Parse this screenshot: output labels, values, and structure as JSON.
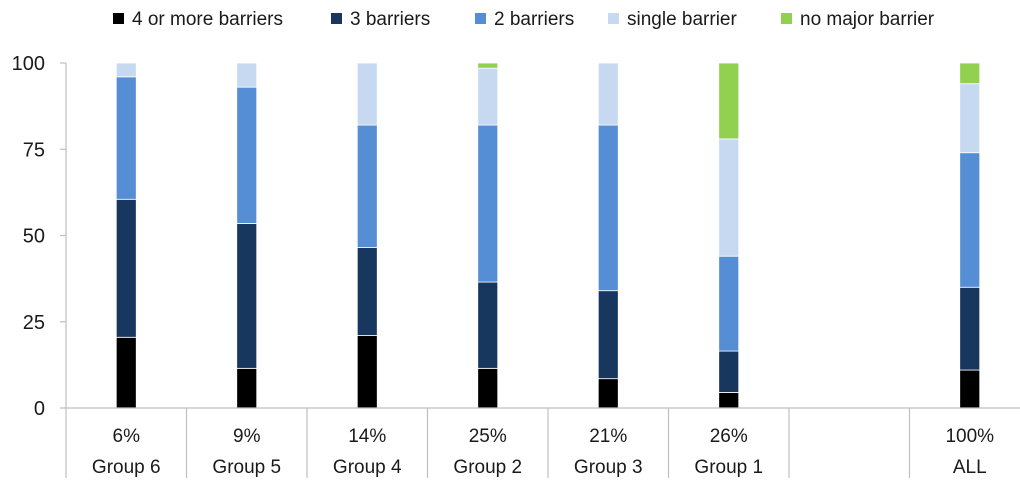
{
  "chart_data": {
    "type": "bar",
    "stacked": true,
    "orientation": "vertical",
    "title": "",
    "xlabel": "",
    "ylabel": "",
    "ylim": [
      0,
      100
    ],
    "yticks": [
      0,
      25,
      50,
      75,
      100
    ],
    "grid": false,
    "legend_position": "top",
    "categories": [
      "Group 6",
      "Group 5",
      "Group 4",
      "Group 2",
      "Group 3",
      "Group 1",
      "",
      "ALL"
    ],
    "category_shares": [
      "6%",
      "9%",
      "14%",
      "25%",
      "21%",
      "26%",
      "",
      "100%"
    ],
    "series": [
      {
        "name": "4 or more barriers",
        "color": "#000000",
        "values": [
          20.5,
          11.5,
          21,
          11.5,
          8.5,
          4.5,
          null,
          11
        ]
      },
      {
        "name": "3 barriers",
        "color": "#17375e",
        "values": [
          40,
          42,
          25.5,
          25,
          25.5,
          12,
          null,
          24
        ]
      },
      {
        "name": "2 barriers",
        "color": "#558ed5",
        "values": [
          35.5,
          39.5,
          35.5,
          45.5,
          48,
          27.5,
          null,
          39
        ]
      },
      {
        "name": "single barrier",
        "color": "#c6d9f1",
        "values": [
          4,
          7,
          18,
          16.5,
          18,
          34,
          null,
          20
        ]
      },
      {
        "name": "no major barrier",
        "color": "#92d050",
        "values": [
          0,
          0,
          0,
          1.5,
          0,
          22,
          null,
          6
        ]
      }
    ]
  }
}
